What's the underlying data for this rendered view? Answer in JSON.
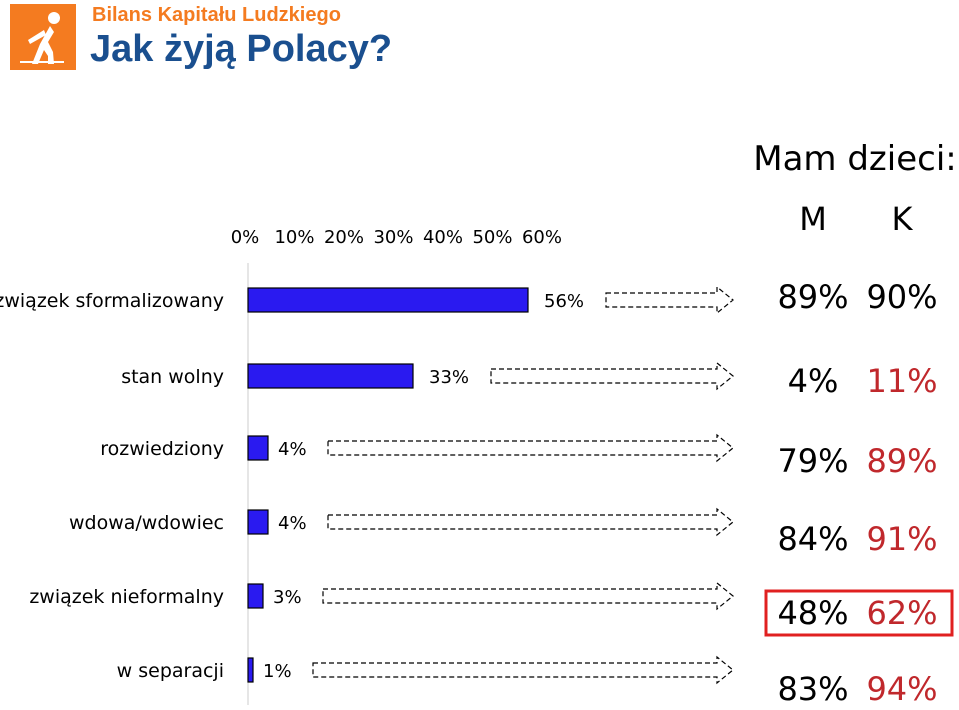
{
  "header": {
    "subtitle": "Bilans Kapitału Ludzkiego",
    "title": "Jak żyją Polacy?"
  },
  "colors": {
    "bar": "#2a1af0",
    "bar_outline": "#000000",
    "highlight_box": "#e02020",
    "female_text": "#c0282c",
    "subtitle_orange": "#f47b20",
    "title_blue": "#1a4f8f"
  },
  "chart_data": {
    "type": "bar",
    "orientation": "horizontal",
    "categories": [
      "związek sformalizowany",
      "stan wolny",
      "rozwiedziony",
      "wdowa/wdowiec",
      "związek nieformalny",
      "w separacji"
    ],
    "values": [
      56,
      33,
      4,
      4,
      3,
      1
    ],
    "value_labels": [
      "56%",
      "33%",
      "4%",
      "4%",
      "3%",
      "1%"
    ],
    "xlim": [
      0,
      60
    ],
    "x_tick_labels": [
      "0%",
      "10%",
      "20%",
      "30%",
      "40%",
      "50%",
      "60%"
    ],
    "legend": "none",
    "side_table": {
      "title": "Mam dzieci:",
      "columns": [
        "M",
        "K"
      ],
      "rows": [
        [
          "89%",
          "90%"
        ],
        [
          "4%",
          "11%"
        ],
        [
          "79%",
          "89%"
        ],
        [
          "84%",
          "91%"
        ],
        [
          "48%",
          "62%"
        ],
        [
          "83%",
          "94%"
        ]
      ],
      "highlighted_row_index": 4
    }
  }
}
